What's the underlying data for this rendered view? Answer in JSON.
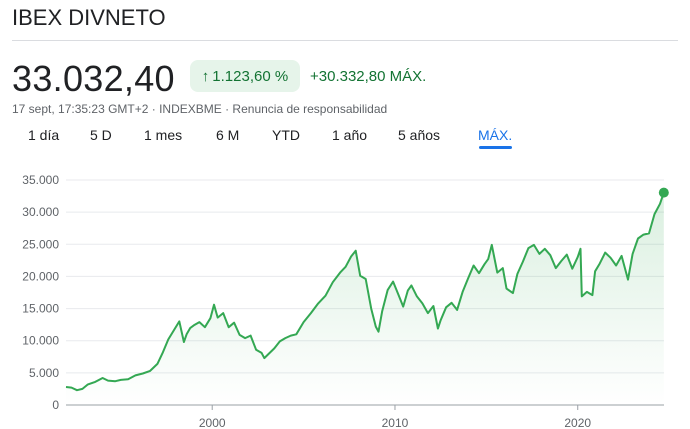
{
  "header": {
    "title": "IBEX DIVNETO",
    "price": "33.032,40",
    "pct_change": "1.123,60 %",
    "abs_change": "+30.332,80 MÁX.",
    "meta": "17 sept, 17:35:23 GMT+2 · INDEXBME · Renuncia de responsabilidad"
  },
  "tabs": [
    "1 día",
    "5 D",
    "1 mes",
    "6 M",
    "YTD",
    "1 año",
    "5 años",
    "MÁX."
  ],
  "active_tab": "MÁX.",
  "colors": {
    "line": "#34a853",
    "fill": "#e6f4ea",
    "accent": "#1a73e8",
    "up": "#137333"
  },
  "chart_data": {
    "type": "area",
    "title": "IBEX DIVNETO",
    "xlabel": "",
    "ylabel": "",
    "ylim": [
      0,
      35000
    ],
    "xlim": [
      1992.0,
      2024.72
    ],
    "y_ticks": [
      0,
      5000,
      10000,
      15000,
      20000,
      25000,
      30000,
      35000
    ],
    "y_tick_labels": [
      "0",
      "5.000",
      "10.000",
      "15.000",
      "20.000",
      "25.000",
      "30.000",
      "35.000"
    ],
    "x_ticks": [
      2000,
      2010,
      2020
    ],
    "x_tick_labels": [
      "2000",
      "2010",
      "2020"
    ],
    "grid": "horizontal",
    "last_point": {
      "x": 2024.71,
      "y": 33032.4
    },
    "series": [
      {
        "name": "IBEX DIVNETO",
        "x": [
          1992.0,
          1992.3,
          1992.6,
          1992.9,
          1993.2,
          1993.6,
          1994.0,
          1994.3,
          1994.7,
          1995.0,
          1995.4,
          1995.8,
          1996.2,
          1996.6,
          1997.0,
          1997.3,
          1997.6,
          1997.9,
          1998.2,
          1998.45,
          1998.6,
          1998.8,
          1999.0,
          1999.3,
          1999.6,
          1999.9,
          2000.1,
          2000.3,
          2000.6,
          2000.9,
          2001.2,
          2001.5,
          2001.8,
          2002.1,
          2002.4,
          2002.7,
          2002.85,
          2003.1,
          2003.4,
          2003.7,
          2004.0,
          2004.3,
          2004.6,
          2005.0,
          2005.4,
          2005.8,
          2006.2,
          2006.6,
          2007.0,
          2007.3,
          2007.6,
          2007.85,
          2008.1,
          2008.4,
          2008.7,
          2008.95,
          2009.1,
          2009.3,
          2009.6,
          2009.9,
          2010.2,
          2010.45,
          2010.7,
          2010.9,
          2011.2,
          2011.5,
          2011.8,
          2012.1,
          2012.35,
          2012.5,
          2012.8,
          2013.1,
          2013.4,
          2013.7,
          2014.0,
          2014.3,
          2014.6,
          2014.9,
          2015.1,
          2015.3,
          2015.6,
          2015.9,
          2016.1,
          2016.45,
          2016.7,
          2017.0,
          2017.3,
          2017.6,
          2017.9,
          2018.2,
          2018.5,
          2018.8,
          2019.1,
          2019.4,
          2019.7,
          2020.0,
          2020.15,
          2020.22,
          2020.5,
          2020.8,
          2020.95,
          2021.2,
          2021.5,
          2021.8,
          2022.1,
          2022.4,
          2022.75,
          2023.0,
          2023.3,
          2023.6,
          2023.9,
          2024.2,
          2024.5,
          2024.71
        ],
        "values": [
          2800,
          2700,
          2300,
          2500,
          3200,
          3600,
          4200,
          3800,
          3700,
          3900,
          4000,
          4600,
          4900,
          5300,
          6400,
          8200,
          10200,
          11600,
          13000,
          9800,
          11000,
          12000,
          12400,
          12900,
          12100,
          13500,
          15600,
          13600,
          14300,
          12100,
          12800,
          10900,
          10400,
          10800,
          8600,
          8100,
          7300,
          8000,
          8800,
          9900,
          10400,
          10800,
          11000,
          12900,
          14300,
          15800,
          17000,
          19100,
          20600,
          21500,
          23100,
          24000,
          20100,
          19600,
          15000,
          12200,
          11400,
          14600,
          17900,
          19200,
          17100,
          15300,
          17800,
          18600,
          16900,
          15800,
          14300,
          15400,
          11900,
          13200,
          15200,
          15900,
          14800,
          17600,
          19700,
          21700,
          20500,
          21900,
          22700,
          24900,
          20600,
          21300,
          18100,
          17400,
          20400,
          22300,
          24400,
          24900,
          23500,
          24300,
          23300,
          21300,
          22400,
          23400,
          21200,
          23000,
          24300,
          16900,
          17600,
          17100,
          20800,
          22000,
          23700,
          22900,
          21700,
          23200,
          19500,
          23500,
          25900,
          26500,
          26700,
          29700,
          31300,
          33032.4
        ]
      }
    ]
  }
}
